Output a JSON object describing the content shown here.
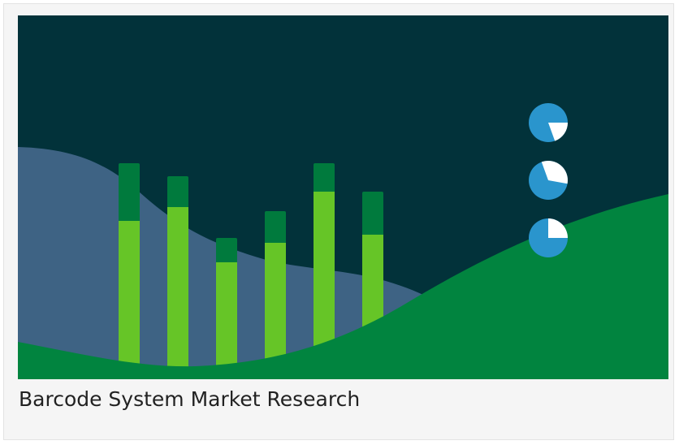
{
  "card": {
    "caption": "Barcode System Market Research"
  }
}
